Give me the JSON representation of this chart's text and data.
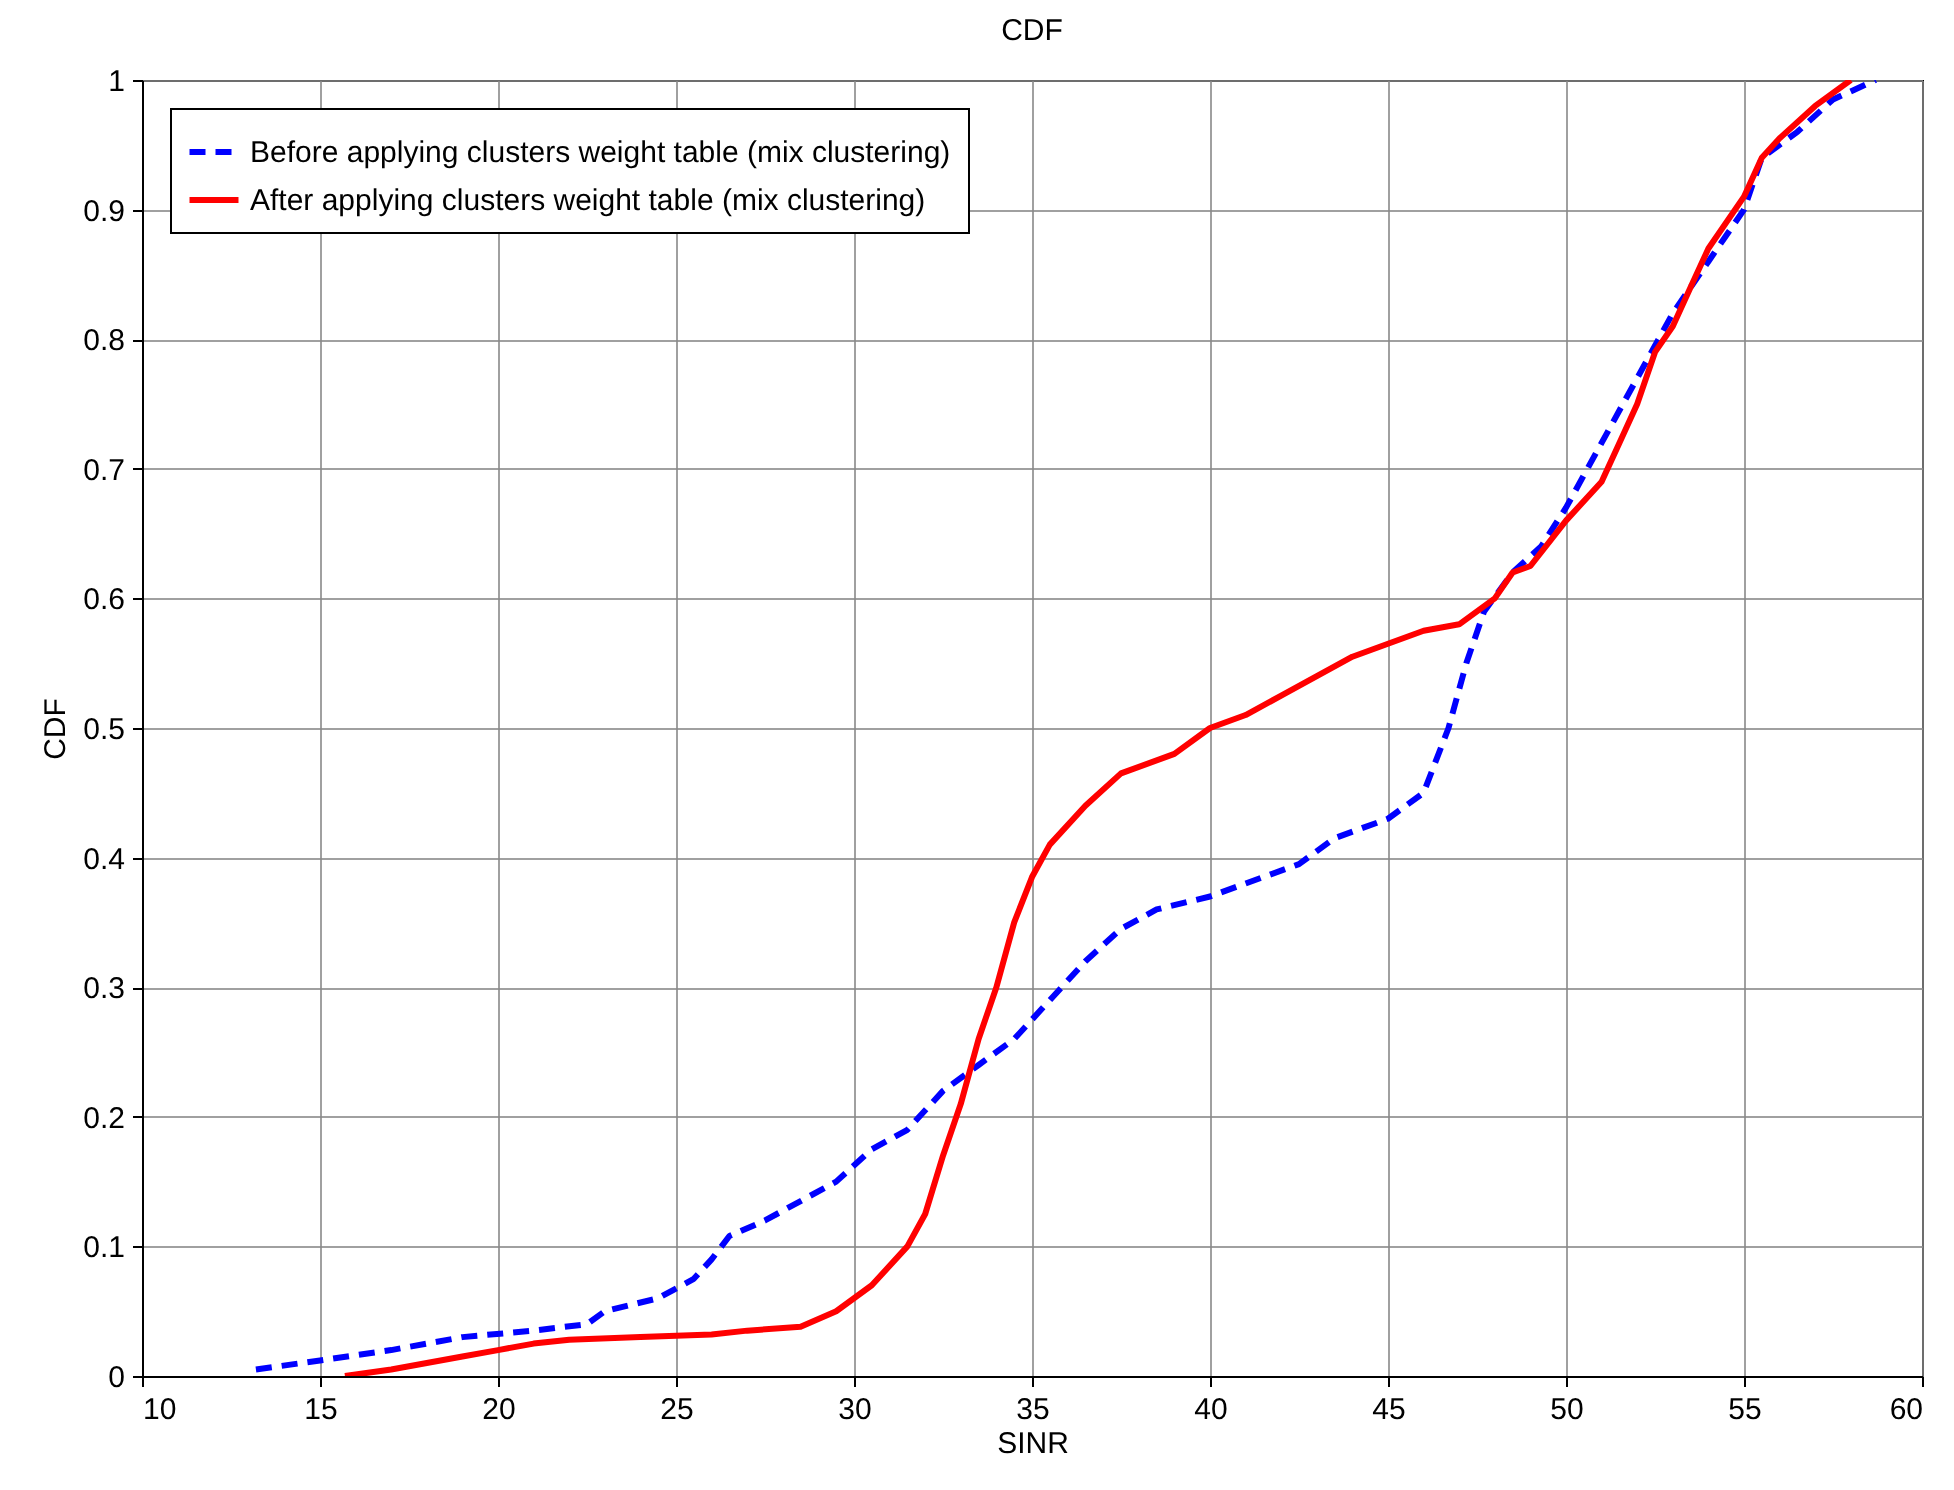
{
  "chart_data": {
    "type": "line",
    "title": "CDF",
    "xlabel": "SINR",
    "ylabel": "CDF",
    "xlim": [
      10,
      60
    ],
    "ylim": [
      0,
      1
    ],
    "xticks": [
      10,
      15,
      20,
      25,
      30,
      35,
      40,
      45,
      50,
      55,
      60
    ],
    "yticks": [
      0,
      0.1,
      0.2,
      0.3,
      0.4,
      0.5,
      0.6,
      0.7,
      0.8,
      0.9,
      1
    ],
    "grid": true,
    "legend": "top left",
    "marker": "none",
    "series": [
      {
        "name": "Before applying clusters weight table (mix clustering)",
        "color": "#0000ff",
        "line_style": "dashed",
        "x": [
          13.2,
          15,
          17,
          19,
          21,
          22.5,
          23,
          24.5,
          25.5,
          26,
          26.5,
          27.5,
          28.5,
          29.5,
          30.5,
          31.5,
          32.5,
          33.5,
          34.5,
          35.5,
          36.5,
          37.5,
          38.5,
          40,
          41,
          42.5,
          43.5,
          45,
          46,
          46.7,
          47.2,
          47.7,
          48.5,
          49.3,
          50,
          51,
          52,
          53,
          54,
          55,
          55.5,
          56.5,
          57.5,
          58.7
        ],
        "values": [
          0.005,
          0.012,
          0.02,
          0.03,
          0.035,
          0.04,
          0.05,
          0.06,
          0.075,
          0.09,
          0.108,
          0.12,
          0.135,
          0.15,
          0.175,
          0.19,
          0.22,
          0.24,
          0.26,
          0.29,
          0.32,
          0.345,
          0.36,
          0.37,
          0.38,
          0.395,
          0.415,
          0.43,
          0.45,
          0.5,
          0.55,
          0.59,
          0.62,
          0.64,
          0.67,
          0.72,
          0.77,
          0.82,
          0.86,
          0.9,
          0.94,
          0.96,
          0.985,
          1.0
        ]
      },
      {
        "name": "After applying clusters weight table (mix clustering)",
        "color": "#ff0000",
        "line_style": "solid",
        "x": [
          15.7,
          17,
          18,
          19,
          20,
          21,
          22,
          24,
          26,
          27,
          28.5,
          29.5,
          30.5,
          31.5,
          32,
          32.5,
          33,
          33.5,
          34,
          34.5,
          35,
          35.5,
          36.5,
          37.5,
          39,
          40,
          41,
          42,
          43,
          44,
          45,
          46,
          47,
          48,
          48.5,
          49,
          50,
          51,
          51.5,
          52,
          52.5,
          53,
          53.5,
          54,
          55,
          55.5,
          56,
          57,
          58
        ],
        "values": [
          0,
          0.005,
          0.01,
          0.015,
          0.02,
          0.025,
          0.028,
          0.03,
          0.032,
          0.035,
          0.038,
          0.05,
          0.07,
          0.1,
          0.125,
          0.17,
          0.21,
          0.26,
          0.3,
          0.35,
          0.385,
          0.41,
          0.44,
          0.465,
          0.48,
          0.5,
          0.51,
          0.525,
          0.54,
          0.555,
          0.565,
          0.575,
          0.58,
          0.6,
          0.62,
          0.625,
          0.66,
          0.69,
          0.72,
          0.75,
          0.79,
          0.81,
          0.84,
          0.87,
          0.91,
          0.94,
          0.955,
          0.98,
          1.0
        ]
      }
    ]
  }
}
